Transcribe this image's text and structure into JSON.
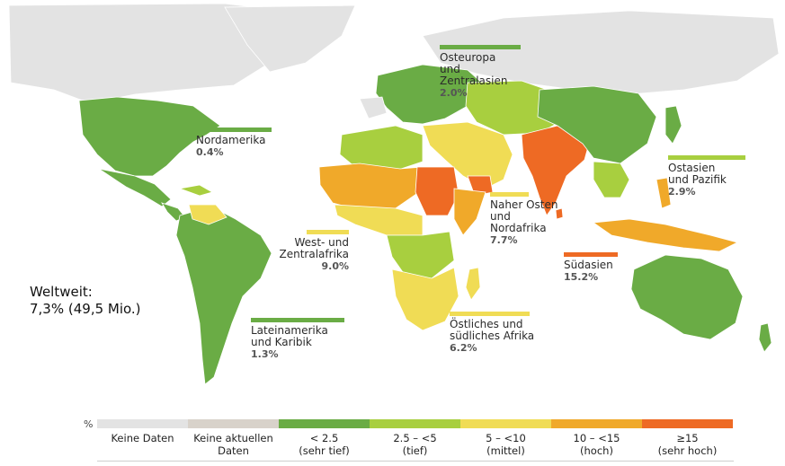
{
  "colors": {
    "no_data": "#e3e3e3",
    "no_current_data": "#d8d2ca",
    "very_low": "#6aac45",
    "low": "#a8cf3f",
    "medium": "#f0dc55",
    "high": "#f0a92a",
    "very_high": "#ee6a24",
    "ocean": "#ffffff"
  },
  "regions": {
    "nordamerika": {
      "name": "Nordamerika",
      "value": "0.4%",
      "color": "#6aac45"
    },
    "osteuropa": {
      "name": "Osteuropa\nund Zentralasien",
      "value": "2.0%",
      "color": "#6aac45"
    },
    "ostasien": {
      "name": "Ostasien\nund Pazifik",
      "value": "2.9%",
      "color": "#a8cf3f"
    },
    "naher_osten": {
      "name": "Naher Osten\nund\nNordafrika",
      "value": "7.7%",
      "color": "#f0dc55"
    },
    "westafrika": {
      "name": "West- und\nZentralafrika",
      "value": "9.0%",
      "color": "#f0dc55"
    },
    "suedasien": {
      "name": "Südasien",
      "value": "15.2%",
      "color": "#ee6a24"
    },
    "lateinamerika": {
      "name": "Lateinamerika\nund Karibik",
      "value": "1.3%",
      "color": "#6aac45"
    },
    "oestliches_afrika": {
      "name": "Östliches und\nsüdliches Afrika",
      "value": "6.2%",
      "color": "#f0dc55"
    }
  },
  "world": {
    "line1": "Weltweit:",
    "line2": "7,3% (49,5 Mio.)"
  },
  "legend": {
    "unit": "%",
    "items": [
      {
        "label": "Keine Daten",
        "color": "#e3e3e3"
      },
      {
        "label": "Keine aktuellen\nDaten",
        "color": "#d8d2ca"
      },
      {
        "label": "< 2.5\n(sehr tief)",
        "color": "#6aac45"
      },
      {
        "label": "2.5 – <5\n(tief)",
        "color": "#a8cf3f"
      },
      {
        "label": "5 – <10\n(mittel)",
        "color": "#f0dc55"
      },
      {
        "label": "10 – <15\n(hoch)",
        "color": "#f0a92a"
      },
      {
        "label": "≥15\n(sehr hoch)",
        "color": "#ee6a24"
      }
    ]
  }
}
